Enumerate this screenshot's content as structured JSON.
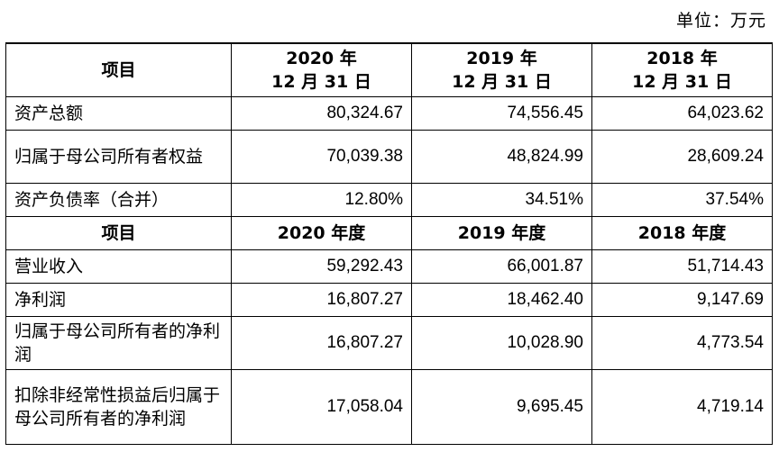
{
  "unit_label": "单位：万元",
  "balance_header": {
    "item": "项目",
    "years": [
      "2020 年\n12 月 31 日",
      "2019 年\n12 月 31 日",
      "2018 年\n12 月 31 日"
    ]
  },
  "balance_rows": [
    {
      "label": "资产总额",
      "values": [
        "80,324.67",
        "74,556.45",
        "64,023.62"
      ]
    },
    {
      "label": "归属于母公司所有者权益",
      "values": [
        "70,039.38",
        "48,824.99",
        "28,609.24"
      ]
    },
    {
      "label": "资产负债率（合并）",
      "values": [
        "12.80%",
        "34.51%",
        "37.54%"
      ]
    }
  ],
  "income_header": {
    "item": "项目",
    "years": [
      "2020 年度",
      "2019 年度",
      "2018 年度"
    ]
  },
  "income_rows": [
    {
      "label": "营业收入",
      "values": [
        "59,292.43",
        "66,001.87",
        "51,714.43"
      ]
    },
    {
      "label": "净利润",
      "values": [
        "16,807.27",
        "18,462.40",
        "9,147.69"
      ]
    },
    {
      "label": "归属于母公司所有者的净利润",
      "values": [
        "16,807.27",
        "10,028.90",
        "4,773.54"
      ]
    },
    {
      "label": "扣除非经常性损益后归属于母公司所有者的净利润",
      "values": [
        "17,058.04",
        "9,695.45",
        "4,719.14"
      ]
    }
  ]
}
